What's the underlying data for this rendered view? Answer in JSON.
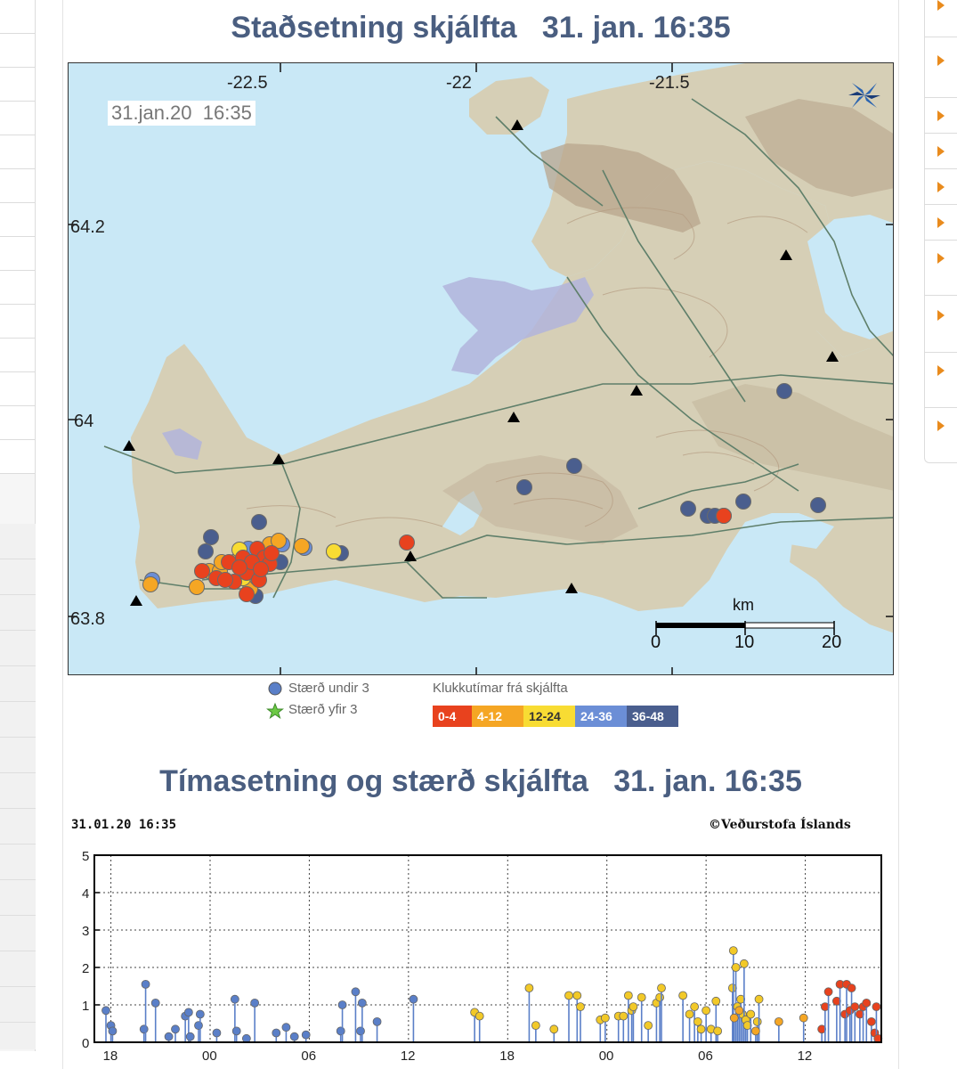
{
  "map": {
    "title": "Staðsetning skjálfta   31. jan. 16:35",
    "timestamp": "31.jan.20  16:35",
    "lon_labels": [
      "-22.5",
      "-22",
      "-21.5"
    ],
    "lat_labels": [
      "64.2",
      "64",
      "63.8"
    ],
    "scale": {
      "unit": "km",
      "ticks": [
        "0",
        "10",
        "20"
      ]
    },
    "colors": {
      "sea": "#c9e8f6",
      "land": "#d6cfb6",
      "lava": "#b2b4dc",
      "roads": "#5f7f6a",
      "stations": "#000000"
    }
  },
  "legend": {
    "small": "Stærð undir 3",
    "large": "Stærð yfir 3",
    "hours_title": "Klukkutímar frá skjálfta",
    "bins": [
      {
        "label": "0-4",
        "color": "#e8421e"
      },
      {
        "label": "4-12",
        "color": "#f5a624"
      },
      {
        "label": "12-24",
        "color": "#f8dc33"
      },
      {
        "label": "24-36",
        "color": "#6b8ed6"
      },
      {
        "label": "36-48",
        "color": "#4a5e8e"
      }
    ]
  },
  "chart": {
    "title": "Tímasetning og stærð skjálfta   31. jan. 16:35",
    "stamp": "31.01.20 16:35",
    "copyright": "©Veðurstofa Íslands"
  },
  "chart_data": {
    "type": "scatter",
    "title": "Tímasetning og stærð skjálfta   31. jan. 16:35",
    "xlabel": "",
    "ylabel": "",
    "x_tick_labels": [
      "18",
      "00",
      "06",
      "12",
      "18",
      "00",
      "06",
      "12"
    ],
    "xlim_hours": [
      -47.6,
      0
    ],
    "ylim": [
      0,
      5
    ],
    "y_ticks": [
      0,
      1,
      2,
      3,
      4,
      5
    ],
    "grid": true,
    "series": [
      {
        "name": "36-48",
        "color": "#5a7fc8",
        "points": [
          [
            -46.9,
            0.85
          ],
          [
            -46.6,
            0.45
          ],
          [
            -46.5,
            0.3
          ],
          [
            -44.6,
            0.35
          ],
          [
            -44.5,
            1.55
          ],
          [
            -43.9,
            1.05
          ],
          [
            -43.1,
            0.15
          ],
          [
            -42.7,
            0.35
          ],
          [
            -42.1,
            0.7
          ],
          [
            -41.9,
            0.8
          ],
          [
            -41.8,
            0.15
          ],
          [
            -41.3,
            0.45
          ],
          [
            -41.2,
            0.75
          ],
          [
            -40.2,
            0.25
          ],
          [
            -39.1,
            1.15
          ],
          [
            -39.0,
            0.3
          ],
          [
            -38.4,
            0.1
          ],
          [
            -37.9,
            1.05
          ],
          [
            -36.6,
            0.25
          ],
          [
            -36.0,
            0.4
          ],
          [
            -35.5,
            0.15
          ],
          [
            -34.8,
            0.2
          ]
        ]
      },
      {
        "name": "24-36",
        "color": "#5a7fc8",
        "points": [
          [
            -32.7,
            0.3
          ],
          [
            -32.6,
            1.0
          ],
          [
            -31.8,
            1.35
          ],
          [
            -31.5,
            0.3
          ],
          [
            -31.4,
            1.05
          ],
          [
            -30.5,
            0.55
          ],
          [
            -28.3,
            1.15
          ]
        ]
      },
      {
        "name": "12-24",
        "color": "#f2c928",
        "points": [
          [
            -24.6,
            0.8
          ],
          [
            -24.3,
            0.7
          ],
          [
            -21.3,
            1.45
          ],
          [
            -20.9,
            0.45
          ],
          [
            -19.8,
            0.35
          ],
          [
            -18.9,
            1.25
          ],
          [
            -18.4,
            1.25
          ],
          [
            -18.2,
            0.95
          ],
          [
            -17.0,
            0.6
          ],
          [
            -16.7,
            0.65
          ],
          [
            -15.9,
            0.7
          ],
          [
            -15.6,
            0.7
          ],
          [
            -15.3,
            1.25
          ],
          [
            -15.1,
            0.85
          ],
          [
            -15.0,
            0.95
          ],
          [
            -14.5,
            1.2
          ],
          [
            -14.1,
            0.45
          ],
          [
            -13.6,
            1.05
          ],
          [
            -13.4,
            1.2
          ],
          [
            -13.3,
            1.45
          ],
          [
            -12.0,
            1.25
          ],
          [
            -11.6,
            0.75
          ],
          [
            -11.3,
            0.95
          ],
          [
            -11.1,
            0.55
          ],
          [
            -10.9,
            0.35
          ],
          [
            -10.6,
            0.85
          ],
          [
            -10.3,
            0.35
          ],
          [
            -10.0,
            1.1
          ],
          [
            -9.9,
            0.3
          ],
          [
            -9.0,
            1.45
          ],
          [
            -8.95,
            2.45
          ],
          [
            -8.8,
            2.0
          ],
          [
            -8.7,
            0.95
          ],
          [
            -8.5,
            1.15
          ],
          [
            -8.4,
            0.75
          ],
          [
            -8.3,
            2.1
          ],
          [
            -8.2,
            0.6
          ],
          [
            -8.1,
            0.45
          ],
          [
            -7.9,
            0.75
          ],
          [
            -7.5,
            0.55
          ],
          [
            -7.4,
            1.15
          ]
        ]
      },
      {
        "name": "4-12",
        "color": "#f5a624",
        "points": [
          [
            -8.9,
            0.65
          ],
          [
            -8.6,
            0.85
          ],
          [
            -7.6,
            0.3
          ],
          [
            -6.2,
            0.55
          ],
          [
            -4.7,
            0.65
          ]
        ]
      },
      {
        "name": "0-4",
        "color": "#e8421e",
        "points": [
          [
            -3.6,
            0.35
          ],
          [
            -3.4,
            0.95
          ],
          [
            -3.2,
            1.35
          ],
          [
            -2.7,
            1.1
          ],
          [
            -2.5,
            1.55
          ],
          [
            -2.2,
            0.75
          ],
          [
            -2.1,
            1.55
          ],
          [
            -1.9,
            0.85
          ],
          [
            -1.8,
            1.45
          ],
          [
            -1.6,
            0.95
          ],
          [
            -1.3,
            0.75
          ],
          [
            -1.1,
            0.95
          ],
          [
            -0.9,
            1.05
          ],
          [
            -0.6,
            0.55
          ],
          [
            -0.4,
            0.25
          ],
          [
            -0.3,
            0.95
          ],
          [
            -0.2,
            0.1
          ]
        ]
      }
    ]
  }
}
